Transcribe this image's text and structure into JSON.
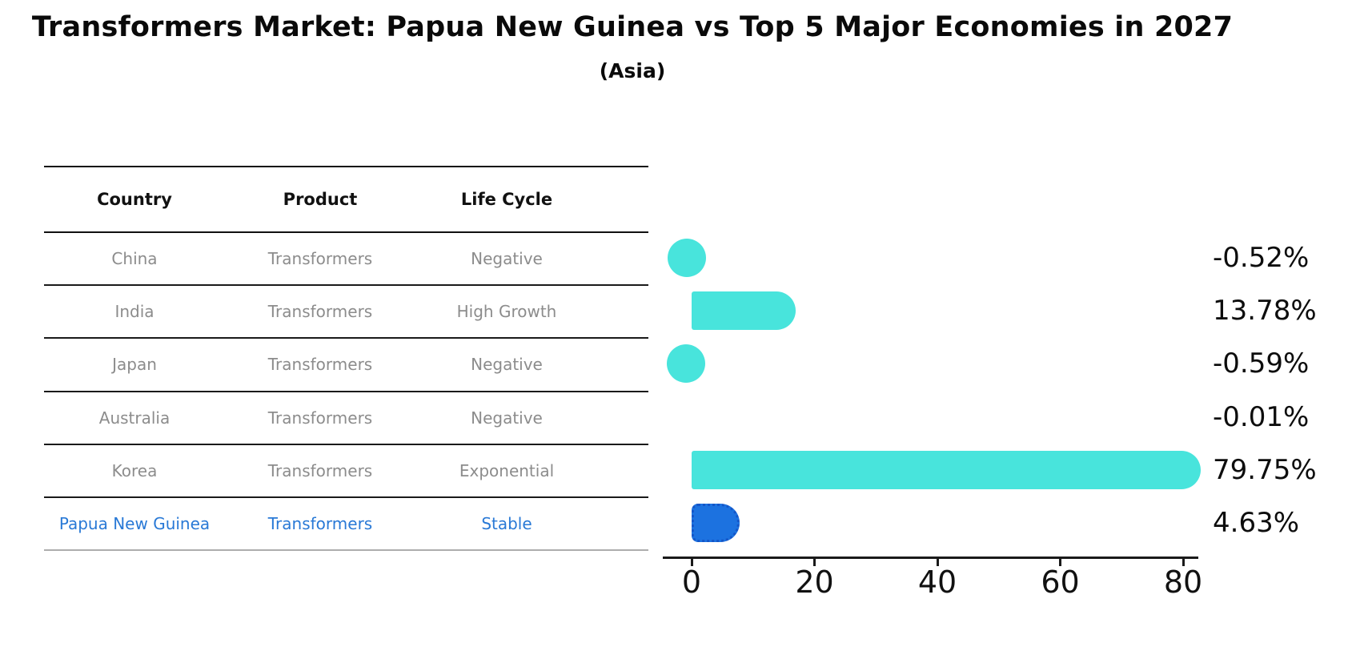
{
  "title": "Transformers Market: Papua New Guinea vs Top 5 Major Economies in 2027",
  "subtitle": "(Asia)",
  "table": {
    "headers": [
      "Country",
      "Product",
      "Life Cycle"
    ],
    "rows": [
      [
        "China",
        "Transformers",
        "Negative"
      ],
      [
        "India",
        "Transformers",
        "High Growth"
      ],
      [
        "Japan",
        "Transformers",
        "Negative"
      ],
      [
        "Australia",
        "Transformers",
        "Negative"
      ],
      [
        "Korea",
        "Transformers",
        "Exponential"
      ],
      [
        "Papua New Guinea",
        "Transformers",
        "Stable"
      ]
    ],
    "highlight_row": 5
  },
  "chart_data": {
    "type": "bar",
    "orientation": "horizontal",
    "title": "Transformers Market: Papua New Guinea vs Top 5 Major Economies in 2027",
    "subtitle": "(Asia)",
    "categories": [
      "China",
      "India",
      "Japan",
      "Australia",
      "Korea",
      "Papua New Guinea"
    ],
    "values": [
      -0.52,
      13.78,
      -0.59,
      -0.01,
      79.75,
      4.63
    ],
    "value_labels": [
      "-0.52%",
      "13.78%",
      "-0.59%",
      "-0.01%",
      "79.75%",
      "4.63%"
    ],
    "x_ticks": [
      "0",
      "20",
      "40",
      "60",
      "80"
    ],
    "x_tick_values": [
      0,
      20,
      40,
      60,
      80
    ],
    "xlim": [
      -4.7,
      82.5
    ],
    "grid": false,
    "legend": false,
    "bar_color": "#48e4dc",
    "highlight_index": 5,
    "highlight_bar_color": "#1c72e0",
    "highlight_edge_color": "#1456c8",
    "highlight_edge_style": "dotted"
  },
  "colors": {
    "background": "#ffffff",
    "title_text": "#0a0a0a",
    "table_header_text": "#111111",
    "table_body_text": "#8c8c8c",
    "highlight_text": "#2979d6",
    "axis": "#1a1a1a"
  }
}
